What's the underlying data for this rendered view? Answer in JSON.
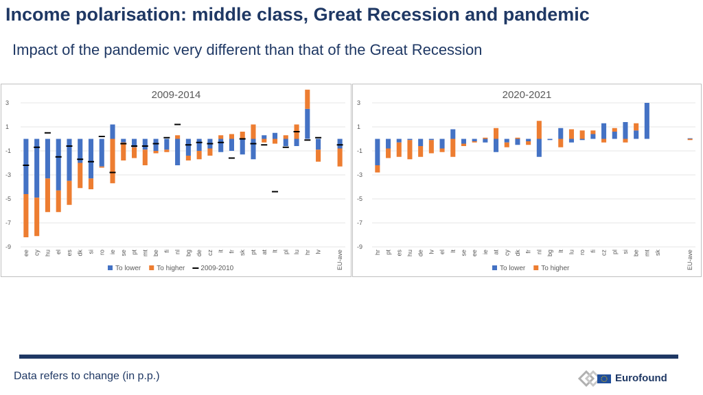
{
  "header": {
    "title": "Income polarisation: middle class, Great Recession and pandemic",
    "subtitle": "Impact of the pandemic very different than that of the Great Recession"
  },
  "footer": {
    "note": "Data refers to change (in p.p.)",
    "logo_text": "Eurofound"
  },
  "colors": {
    "lower": "#4472c4",
    "higher": "#ed7d31",
    "marker": "#000000",
    "title": "#1f3864"
  },
  "chart_data": [
    {
      "type": "bar",
      "title": "2009-2014",
      "ylim": [
        -9,
        3
      ],
      "yticks": [
        "3",
        "1",
        "-1",
        "-3",
        "-5",
        "-7",
        "-9"
      ],
      "yticks_values": [
        3,
        1,
        -1,
        -3,
        -5,
        -7,
        -9
      ],
      "grid": true,
      "legend": [
        "To lower",
        "To higher",
        "2009-2010"
      ],
      "categories": [
        "ee",
        "cy",
        "hu",
        "el",
        "es",
        "dk",
        "si",
        "ro",
        "ie",
        "se",
        "pt",
        "mt",
        "be",
        "fi",
        "nl",
        "bg",
        "de",
        "cz",
        "it",
        "fr",
        "sk",
        "pt",
        "at",
        "lt",
        "pl",
        "lu",
        "hr",
        "lv",
        "",
        "EU-ave"
      ],
      "series": [
        {
          "name": "To lower",
          "values": [
            -4.6,
            -4.9,
            -3.3,
            -4.3,
            -3.5,
            -2.0,
            -3.3,
            -2.3,
            1.2,
            -0.3,
            -0.7,
            -0.9,
            -1.0,
            -0.9,
            -2.2,
            -1.4,
            -1.0,
            -0.8,
            -1.1,
            -1.0,
            -1.3,
            -1.7,
            0.3,
            0.5,
            -0.6,
            -0.6,
            2.5,
            -0.9,
            0,
            -0.8
          ]
        },
        {
          "name": "To higher",
          "values": [
            -3.6,
            -3.2,
            -2.8,
            -1.8,
            -2.0,
            -2.1,
            -0.9,
            -0.1,
            -3.7,
            -1.5,
            -0.9,
            -1.3,
            -0.2,
            -0.2,
            0.3,
            -0.4,
            -0.7,
            -0.6,
            0.3,
            0.4,
            0.6,
            1.2,
            -0.3,
            -0.4,
            0.3,
            1.2,
            1.6,
            -1.0,
            0,
            -1.5
          ]
        },
        {
          "name": "2009-2010",
          "values": [
            -2.2,
            -0.7,
            0.5,
            -1.5,
            -0.6,
            -1.7,
            -1.9,
            0.2,
            -2.8,
            -0.4,
            -0.6,
            -0.6,
            -0.4,
            0.1,
            1.2,
            -0.5,
            -0.3,
            -0.4,
            -0.3,
            -1.6,
            0,
            -0.4,
            -0.5,
            -4.4,
            -0.7,
            0.6,
            -0.1,
            0.1,
            0,
            -0.5
          ]
        }
      ]
    },
    {
      "type": "bar",
      "title": "2020-2021",
      "ylim": [
        -9,
        3
      ],
      "yticks": [
        "3",
        "1",
        "-1",
        "-3",
        "-5",
        "-7",
        "-9"
      ],
      "yticks_values": [
        3,
        1,
        -1,
        -3,
        -5,
        -7,
        -9
      ],
      "grid": true,
      "legend": [
        "To lower",
        "To higher"
      ],
      "categories": [
        "hr",
        "pt",
        "es",
        "hu",
        "de",
        "lv",
        "el",
        "lt",
        "se",
        "ee",
        "ie",
        "at",
        "cy",
        "dk",
        "fr",
        "nl",
        "bg",
        "lt",
        "lu",
        "ro",
        "fi",
        "cz",
        "pl",
        "si",
        "be",
        "mt",
        "sk",
        "",
        "",
        "EU-ave"
      ],
      "series": [
        {
          "name": "To lower",
          "values": [
            -2.2,
            -0.8,
            -0.3,
            -0.1,
            -0.6,
            -0.1,
            -0.8,
            0.8,
            -0.4,
            -0.2,
            -0.3,
            -1.1,
            -0.3,
            -0.5,
            -0.2,
            -1.5,
            -0.1,
            0.9,
            -0.3,
            -0.1,
            0.4,
            1.3,
            0.6,
            1.4,
            0.7,
            3.0,
            0,
            0,
            0,
            0.05
          ]
        },
        {
          "name": "To higher",
          "values": [
            -0.6,
            -0.8,
            -1.2,
            -1.6,
            -0.9,
            -1.1,
            -0.3,
            -1.5,
            -0.2,
            -0.1,
            0.1,
            0.9,
            -0.4,
            0.1,
            -0.3,
            1.5,
            0,
            -0.7,
            0.8,
            0.7,
            0.3,
            -0.3,
            0.3,
            -0.3,
            0.6,
            0,
            0,
            0,
            0,
            -0.1
          ]
        }
      ]
    }
  ]
}
